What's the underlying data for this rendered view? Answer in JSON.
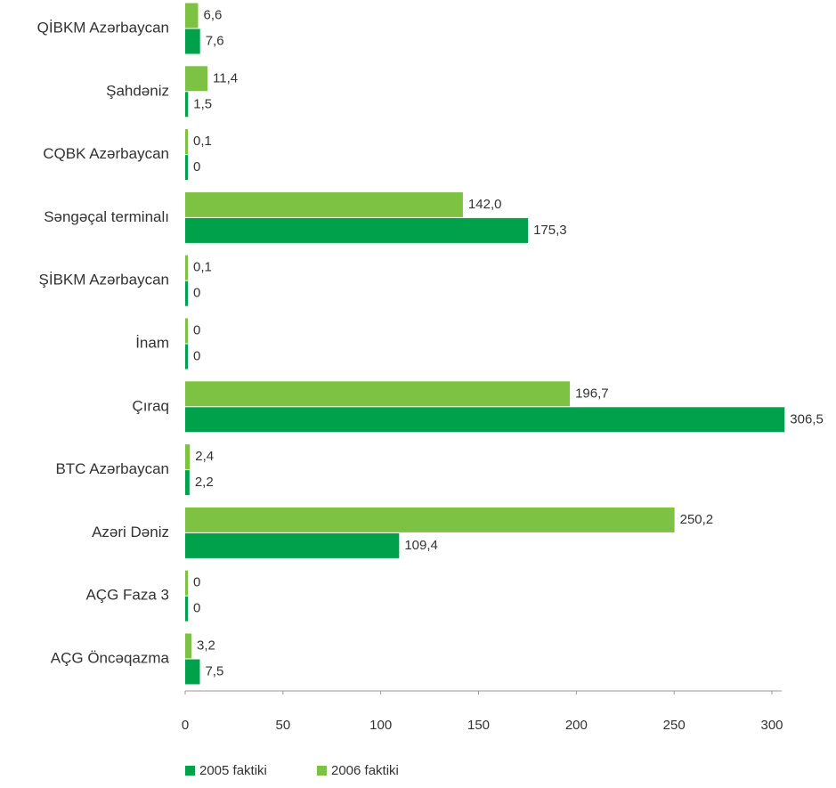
{
  "chart_data": {
    "type": "bar",
    "orientation": "horizontal",
    "categories": [
      "QİBKM Azərbaycan",
      "Şahdəniz",
      "CQBK Azərbaycan",
      "Səngəçal terminalı",
      "ŞİBKM Azərbaycan",
      "İnam",
      "Çıraq",
      "BTC Azərbaycan",
      "Azəri Dəniz",
      "AÇG Faza 3",
      "AÇG Öncəqazma"
    ],
    "series": [
      {
        "name": "2006 faktiki",
        "color": "#7dc242",
        "values": [
          6.6,
          11.4,
          0.1,
          142.0,
          0.1,
          0,
          196.7,
          2.4,
          250.2,
          0,
          3.2
        ],
        "value_labels": [
          "6,6",
          "11,4",
          "0,1",
          "142,0",
          "0,1",
          "0",
          "196,7",
          "2,4",
          "250,2",
          "0",
          "3,2"
        ]
      },
      {
        "name": "2005 faktiki",
        "color": "#00a14b",
        "values": [
          7.6,
          1.5,
          0,
          175.3,
          0,
          0,
          306.5,
          2.2,
          109.4,
          0,
          7.5
        ],
        "value_labels": [
          "7,6",
          "1,5",
          "0",
          "175,3",
          "0",
          "0",
          "306,5",
          "2,2",
          "109,4",
          "0",
          "7,5"
        ]
      }
    ],
    "legend_order": [
      1,
      0
    ],
    "xlim": [
      0,
      305
    ],
    "xticks": [
      0,
      50,
      100,
      150,
      200,
      250,
      300
    ],
    "legend": "bottom"
  }
}
